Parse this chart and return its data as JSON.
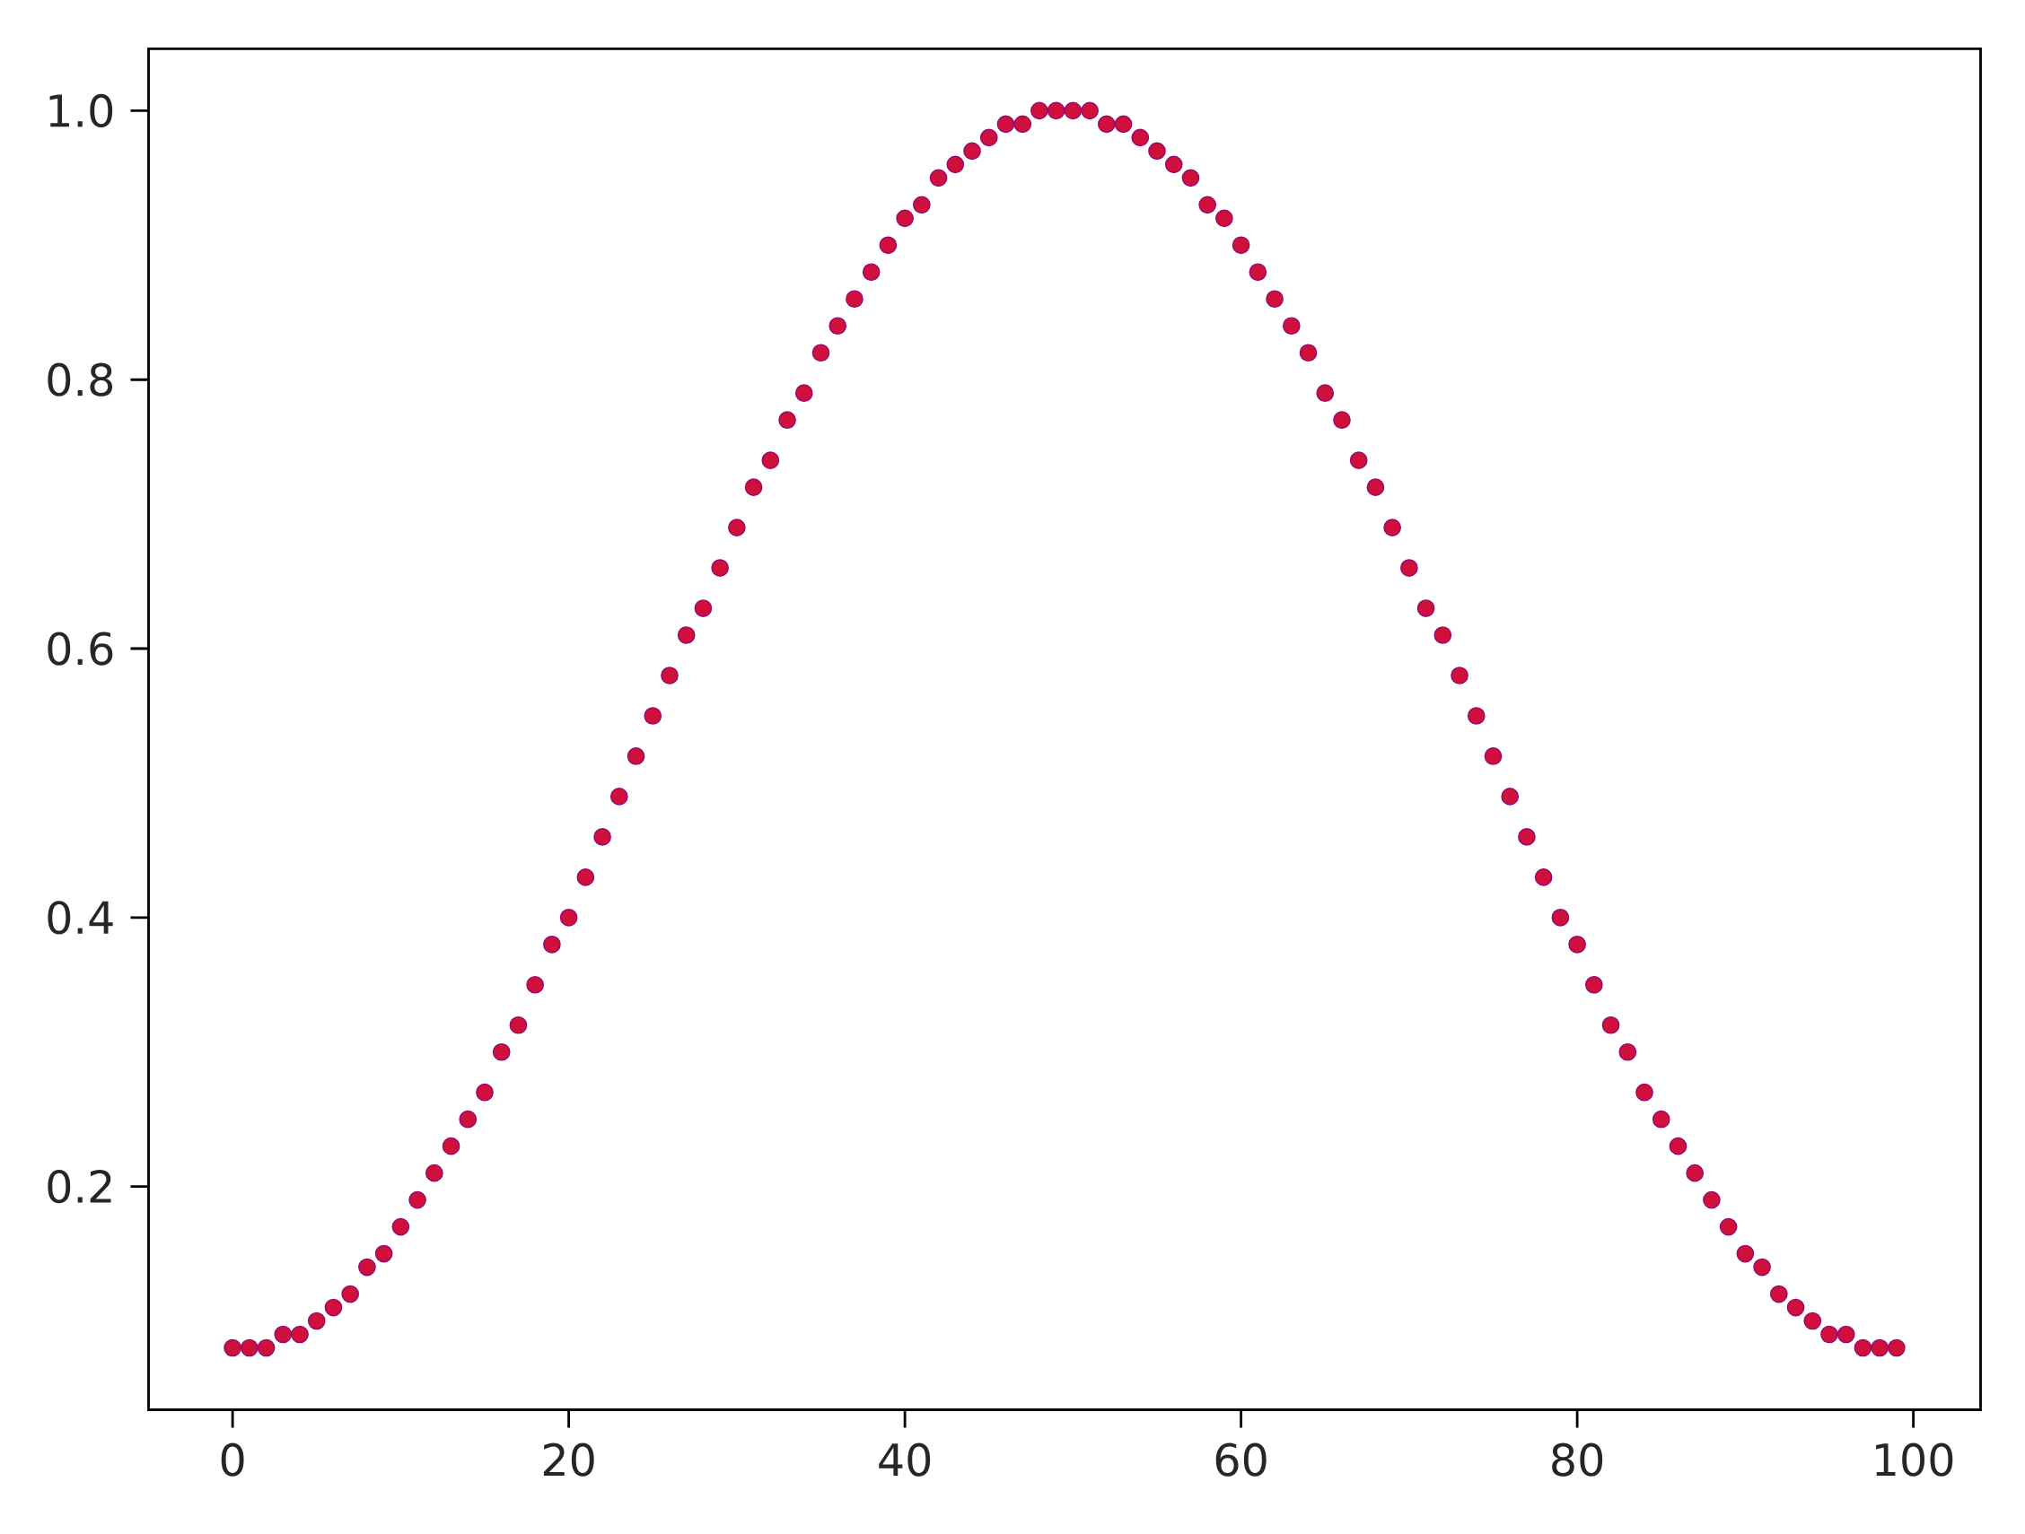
{
  "chart_data": {
    "type": "scatter",
    "color": "#d0103a",
    "x": [
      0,
      1,
      2,
      3,
      4,
      5,
      6,
      7,
      8,
      9,
      10,
      11,
      12,
      13,
      14,
      15,
      16,
      17,
      18,
      19,
      20,
      21,
      22,
      23,
      24,
      25,
      26,
      27,
      28,
      29,
      30,
      31,
      32,
      33,
      34,
      35,
      36,
      37,
      38,
      39,
      40,
      41,
      42,
      43,
      44,
      45,
      46,
      47,
      48,
      49,
      50,
      51,
      52,
      53,
      54,
      55,
      56,
      57,
      58,
      59,
      60,
      61,
      62,
      63,
      64,
      65,
      66,
      67,
      68,
      69,
      70,
      71,
      72,
      73,
      74,
      75,
      76,
      77,
      78,
      79,
      80,
      81,
      82,
      83,
      84,
      85,
      86,
      87,
      88,
      89,
      90,
      91,
      92,
      93,
      94,
      95,
      96,
      97,
      98,
      99
    ],
    "values": [
      0.08,
      0.08,
      0.08,
      0.09,
      0.09,
      0.1,
      0.11,
      0.12,
      0.14,
      0.15,
      0.17,
      0.19,
      0.21,
      0.23,
      0.25,
      0.27,
      0.3,
      0.32,
      0.35,
      0.38,
      0.4,
      0.43,
      0.46,
      0.49,
      0.52,
      0.55,
      0.58,
      0.61,
      0.63,
      0.66,
      0.69,
      0.72,
      0.74,
      0.77,
      0.79,
      0.82,
      0.84,
      0.86,
      0.88,
      0.9,
      0.92,
      0.93,
      0.95,
      0.96,
      0.97,
      0.98,
      0.99,
      0.99,
      1.0,
      1.0,
      1.0,
      1.0,
      0.99,
      0.99,
      0.98,
      0.97,
      0.96,
      0.95,
      0.93,
      0.92,
      0.9,
      0.88,
      0.86,
      0.84,
      0.82,
      0.79,
      0.77,
      0.74,
      0.72,
      0.69,
      0.66,
      0.63,
      0.61,
      0.58,
      0.55,
      0.52,
      0.49,
      0.46,
      0.43,
      0.4,
      0.38,
      0.35,
      0.32,
      0.3,
      0.27,
      0.25,
      0.23,
      0.21,
      0.19,
      0.17,
      0.15,
      0.14,
      0.12,
      0.11,
      0.1,
      0.09,
      0.09,
      0.08,
      0.08,
      0.08
    ],
    "xlim": [
      -5,
      104
    ],
    "ylim": [
      0.034,
      1.046
    ],
    "xticks": [
      0,
      20,
      40,
      60,
      80,
      100
    ],
    "yticks": [
      0.2,
      0.4,
      0.6,
      0.8,
      {
        "value": 1.0,
        "label": "1.0"
      }
    ]
  }
}
